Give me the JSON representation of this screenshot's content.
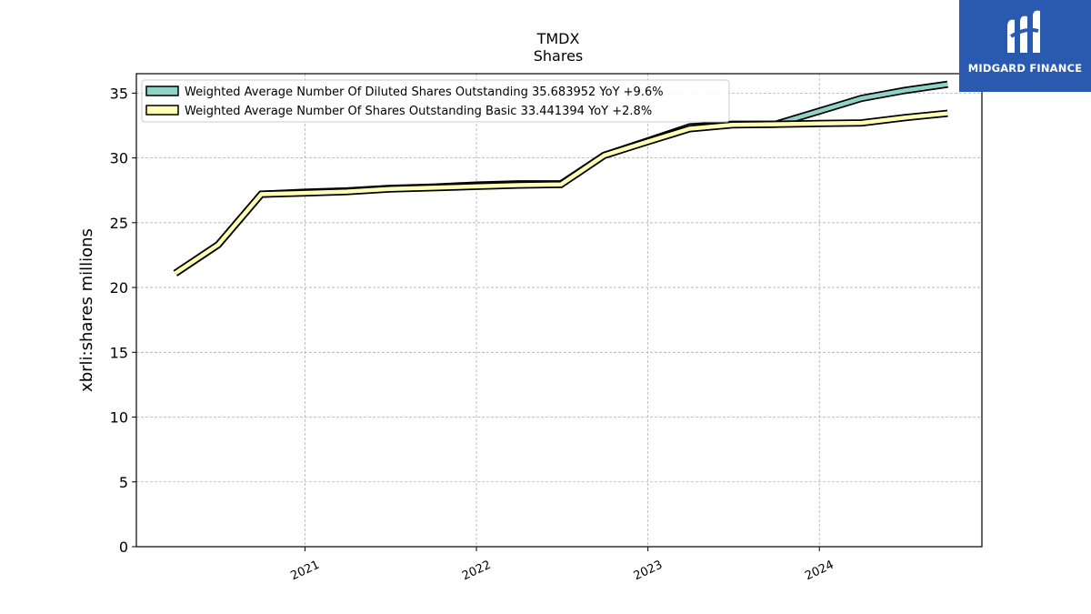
{
  "chart_data": {
    "type": "line",
    "title": "TMDX",
    "subtitle": "Shares",
    "xlabel": "",
    "ylabel": "xbrli:shares millions",
    "ylim": [
      0,
      36.5
    ],
    "yticks": [
      0,
      5,
      10,
      15,
      20,
      25,
      30,
      35
    ],
    "x_tick_labels": [
      "2021",
      "2022",
      "2023",
      "2024"
    ],
    "grid": true,
    "legend_position": "top-left",
    "x": [
      "2020-03-31",
      "2020-06-30",
      "2020-09-30",
      "2020-12-31",
      "2021-03-31",
      "2021-06-30",
      "2021-09-30",
      "2021-12-31",
      "2022-03-31",
      "2022-06-30",
      "2022-09-30",
      "2022-12-31",
      "2023-03-31",
      "2023-06-30",
      "2023-09-30",
      "2023-12-31",
      "2024-03-31",
      "2024-06-30",
      "2024-09-30"
    ],
    "series": [
      {
        "name": "Weighted Average Number Of Diluted Shares Outstanding",
        "legend_label": "Weighted Average Number Of Diluted Shares Outstanding  35.683952 YoY +9.6%",
        "color": "#8dd3c7",
        "values": [
          21.1,
          23.3,
          27.2,
          27.35,
          27.45,
          27.65,
          27.75,
          27.9,
          28.0,
          28.0,
          30.2,
          31.3,
          32.4,
          32.6,
          32.6,
          33.6,
          34.6,
          35.2,
          35.68
        ]
      },
      {
        "name": "Weighted Average Number Of Shares Outstanding Basic",
        "legend_label": "Weighted Average Number Of Shares Outstanding Basic  33.441394 YoY +2.8%",
        "color": "#ffffb3",
        "values": [
          21.1,
          23.3,
          27.2,
          27.3,
          27.4,
          27.6,
          27.7,
          27.8,
          27.9,
          27.95,
          30.2,
          31.25,
          32.25,
          32.55,
          32.6,
          32.65,
          32.7,
          33.1,
          33.44
        ]
      }
    ]
  },
  "logo": {
    "text": "MIDGARD FINANCE",
    "color": "#2a5aaf"
  }
}
